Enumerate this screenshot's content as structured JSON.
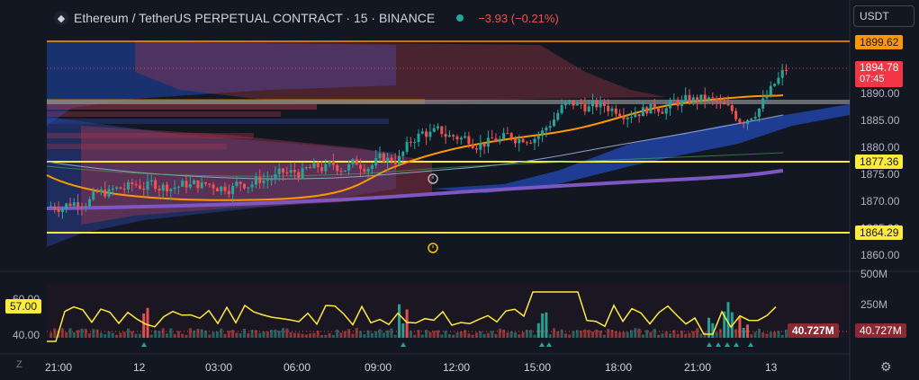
{
  "header": {
    "symbol_title": "Ethereum / TetherUS PERPETUAL CONTRACT · 15 · BINANCE",
    "change": "−3.93 (−0.21%)",
    "currency": "USDT",
    "icon": "ethereum-icon"
  },
  "price_axis": {
    "ticks": [
      "1890.00",
      "1885.00",
      "1880.00",
      "1875.00",
      "1870.00",
      "1865.00",
      "1860.00"
    ],
    "tag_top": "1899.62",
    "tag_current": "1894.78",
    "tag_countdown": "07:45",
    "tag_mid": "1877.36",
    "tag_low": "1864.29"
  },
  "volume_axis": {
    "ticks": [
      "500M",
      "250M"
    ],
    "tag_volume": "40.727M",
    "tag_volume_left": "40.727M"
  },
  "oscillator": {
    "ticks": [
      "60.00",
      "40.00"
    ],
    "current": "57.00"
  },
  "time_axis": {
    "ticks": [
      "21:00",
      "12",
      "03:00",
      "06:00",
      "09:00",
      "12:00",
      "15:00",
      "18:00",
      "21:00",
      "13"
    ]
  },
  "controls": {
    "zoom_label": "Z",
    "settings_icon": "gear-icon"
  },
  "colors": {
    "background": "#131722",
    "up": "#26a69a",
    "down": "#ef5350",
    "level_orange": "#ff9800",
    "level_yellow": "#ffeb3b",
    "vwap_purple": "#7e57c2",
    "cloud_blue": "#2962ff"
  }
}
